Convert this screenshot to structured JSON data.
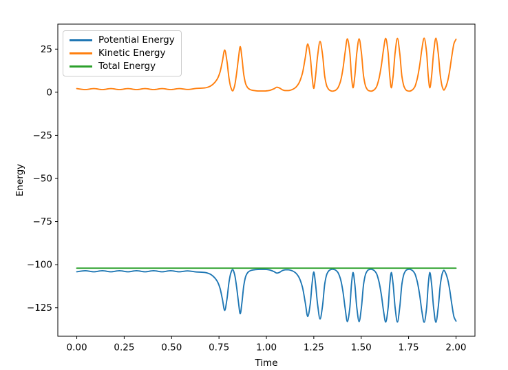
{
  "chart_data": {
    "type": "line",
    "title": "",
    "xlabel": "Time",
    "ylabel": "Energy",
    "xlim": [
      -0.1,
      2.1
    ],
    "ylim": [
      -141.5,
      39.5
    ],
    "grid": false,
    "background_color": "#ffffff",
    "axis_color": "#000000",
    "x_ticks": [
      {
        "value": 0.0,
        "label": "0.00"
      },
      {
        "value": 0.25,
        "label": "0.25"
      },
      {
        "value": 0.5,
        "label": "0.50"
      },
      {
        "value": 0.75,
        "label": "0.75"
      },
      {
        "value": 1.0,
        "label": "1.00"
      },
      {
        "value": 1.25,
        "label": "1.25"
      },
      {
        "value": 1.5,
        "label": "1.50"
      },
      {
        "value": 1.75,
        "label": "1.75"
      },
      {
        "value": 2.0,
        "label": "2.00"
      }
    ],
    "y_ticks": [
      {
        "value": 25,
        "label": "25"
      },
      {
        "value": 0,
        "label": "0"
      },
      {
        "value": -25,
        "label": "−25"
      },
      {
        "value": -50,
        "label": "−50"
      },
      {
        "value": -75,
        "label": "−75"
      },
      {
        "value": -100,
        "label": "−100"
      },
      {
        "value": -125,
        "label": "−125"
      }
    ],
    "legend": {
      "position": "upper left",
      "border_color": "#cccccc",
      "background": "rgba(255,255,255,0.8)"
    },
    "total_energy": -102,
    "series": [
      {
        "name": "Potential Energy",
        "color": "#1f77b4",
        "derive": "total_minus_kinetic",
        "baseline": -104.1,
        "min": -133.4
      },
      {
        "name": "Kinetic Energy",
        "color": "#ff7f0e",
        "points": [
          [
            0.0,
            2.1
          ],
          [
            0.045,
            1.5
          ],
          [
            0.09,
            2.1
          ],
          [
            0.135,
            1.5
          ],
          [
            0.18,
            2.1
          ],
          [
            0.225,
            1.5
          ],
          [
            0.27,
            2.1
          ],
          [
            0.315,
            1.5
          ],
          [
            0.36,
            2.1
          ],
          [
            0.405,
            1.5
          ],
          [
            0.45,
            2.1
          ],
          [
            0.495,
            1.5
          ],
          [
            0.54,
            2.1
          ],
          [
            0.585,
            1.6
          ],
          [
            0.63,
            2.2
          ],
          [
            0.675,
            2.5
          ],
          [
            0.7,
            3.3
          ],
          [
            0.72,
            4.8
          ],
          [
            0.74,
            7.5
          ],
          [
            0.755,
            11.5
          ],
          [
            0.768,
            18
          ],
          [
            0.78,
            24.5
          ],
          [
            0.792,
            18
          ],
          [
            0.803,
            8
          ],
          [
            0.812,
            3
          ],
          [
            0.822,
            0.8
          ],
          [
            0.832,
            3.5
          ],
          [
            0.843,
            11
          ],
          [
            0.853,
            20
          ],
          [
            0.862,
            26.5
          ],
          [
            0.871,
            20
          ],
          [
            0.881,
            10
          ],
          [
            0.892,
            4.5
          ],
          [
            0.905,
            2.2
          ],
          [
            0.92,
            1.3
          ],
          [
            0.94,
            0.9
          ],
          [
            0.965,
            0.7
          ],
          [
            0.99,
            0.7
          ],
          [
            1.015,
            1.0
          ],
          [
            1.04,
            2.0
          ],
          [
            1.055,
            2.9
          ],
          [
            1.07,
            2.4
          ],
          [
            1.085,
            1.4
          ],
          [
            1.1,
            0.95
          ],
          [
            1.115,
            0.95
          ],
          [
            1.13,
            1.3
          ],
          [
            1.15,
            2.4
          ],
          [
            1.17,
            5
          ],
          [
            1.19,
            11
          ],
          [
            1.205,
            20
          ],
          [
            1.218,
            28
          ],
          [
            1.231,
            21
          ],
          [
            1.241,
            9
          ],
          [
            1.25,
            2.2
          ],
          [
            1.259,
            9
          ],
          [
            1.27,
            21
          ],
          [
            1.283,
            29.5
          ],
          [
            1.296,
            22
          ],
          [
            1.308,
            9
          ],
          [
            1.32,
            3.2
          ],
          [
            1.333,
            1.2
          ],
          [
            1.347,
            0.6
          ],
          [
            1.36,
            0.9
          ],
          [
            1.375,
            2.2
          ],
          [
            1.39,
            6
          ],
          [
            1.403,
            13
          ],
          [
            1.415,
            23
          ],
          [
            1.427,
            31
          ],
          [
            1.44,
            23
          ],
          [
            1.449,
            9
          ],
          [
            1.457,
            2.5
          ],
          [
            1.466,
            9
          ],
          [
            1.477,
            23
          ],
          [
            1.489,
            31
          ],
          [
            1.501,
            23
          ],
          [
            1.513,
            9
          ],
          [
            1.525,
            3
          ],
          [
            1.538,
            1.0
          ],
          [
            1.552,
            0.6
          ],
          [
            1.566,
            1.2
          ],
          [
            1.58,
            3
          ],
          [
            1.594,
            8
          ],
          [
            1.607,
            16
          ],
          [
            1.618,
            25
          ],
          [
            1.629,
            31.3
          ],
          [
            1.642,
            23
          ],
          [
            1.651,
            9
          ],
          [
            1.659,
            2.5
          ],
          [
            1.668,
            9
          ],
          [
            1.679,
            23
          ],
          [
            1.691,
            31.3
          ],
          [
            1.703,
            23
          ],
          [
            1.715,
            9
          ],
          [
            1.727,
            3
          ],
          [
            1.74,
            1.0
          ],
          [
            1.754,
            0.6
          ],
          [
            1.768,
            1.2
          ],
          [
            1.782,
            3
          ],
          [
            1.796,
            8
          ],
          [
            1.809,
            16
          ],
          [
            1.82,
            25
          ],
          [
            1.832,
            31.4
          ],
          [
            1.845,
            23
          ],
          [
            1.854,
            9
          ],
          [
            1.862,
            2.5
          ],
          [
            1.871,
            9
          ],
          [
            1.882,
            23
          ],
          [
            1.894,
            31.4
          ],
          [
            1.906,
            23
          ],
          [
            1.918,
            9
          ],
          [
            1.928,
            3
          ],
          [
            1.936,
            1.2
          ],
          [
            1.944,
            2.5
          ],
          [
            1.955,
            6
          ],
          [
            1.966,
            12
          ],
          [
            1.978,
            21
          ],
          [
            1.99,
            28.5
          ],
          [
            2.0,
            30.7
          ]
        ]
      },
      {
        "name": "Total Energy",
        "color": "#2ca02c",
        "constant": -102,
        "x_range": [
          0,
          2
        ]
      }
    ]
  }
}
